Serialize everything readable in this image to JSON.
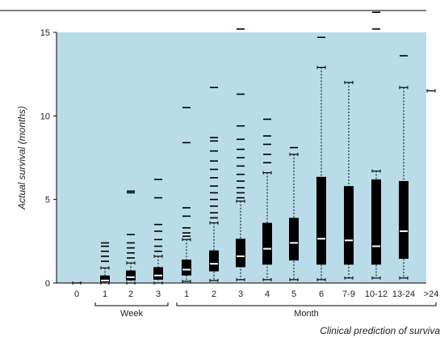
{
  "chart_data": {
    "type": "boxplot",
    "title": "",
    "ylabel": "Actual survival (months)",
    "xlabel": "Clinical prediction of surviva",
    "ylim": [
      0,
      15
    ],
    "yticks": [
      0,
      5,
      10,
      15
    ],
    "grid": false,
    "colors": {
      "panel": "#b9dce8",
      "box": "#000000",
      "median": "#ffffff",
      "outlier": "#000000"
    },
    "groups": [
      {
        "label": "Week",
        "categories": [
          "1",
          "2",
          "3"
        ]
      },
      {
        "label": "Month",
        "categories": [
          "1",
          "2",
          "3",
          "4",
          "5",
          "6",
          "7-9",
          "10-12",
          "13-24",
          ">24"
        ]
      }
    ],
    "categories": [
      "0",
      "1",
      "2",
      "3",
      "1",
      "2",
      "3",
      "4",
      "5",
      "6",
      "7-9",
      "10-12",
      "13-24",
      ">24"
    ],
    "boxes": [
      {
        "category": "0",
        "whisker_low": 0.0,
        "q1": 0.0,
        "median": 0.0,
        "q3": 0.0,
        "whisker_high": 0.0,
        "outliers": []
      },
      {
        "category": "1",
        "whisker_low": 0.0,
        "q1": 0.05,
        "median": 0.15,
        "q3": 0.45,
        "whisker_high": 0.9,
        "outliers": [
          1.3,
          1.6,
          1.9,
          2.2,
          2.4
        ]
      },
      {
        "category": "2",
        "whisker_low": 0.0,
        "q1": 0.15,
        "median": 0.35,
        "q3": 0.75,
        "whisker_high": 1.2,
        "outliers": [
          1.5,
          1.8,
          2.1,
          2.4,
          2.9,
          5.4,
          5.5
        ]
      },
      {
        "category": "3",
        "whisker_low": 0.0,
        "q1": 0.2,
        "median": 0.45,
        "q3": 0.95,
        "whisker_high": 1.6,
        "outliers": [
          1.9,
          2.2,
          2.6,
          3.1,
          3.5,
          5.1,
          6.2
        ]
      },
      {
        "category": "1",
        "whisker_low": 0.1,
        "q1": 0.45,
        "median": 0.8,
        "q3": 1.4,
        "whisker_high": 2.6,
        "outliers": [
          2.8,
          3.0,
          3.3,
          4.0,
          4.5,
          8.4,
          10.5
        ]
      },
      {
        "category": "2",
        "whisker_low": 0.15,
        "q1": 0.7,
        "median": 1.15,
        "q3": 1.95,
        "whisker_high": 3.6,
        "outliers": [
          3.9,
          4.2,
          4.6,
          5.0,
          5.4,
          5.8,
          6.3,
          6.8,
          7.3,
          7.9,
          8.5,
          8.7,
          11.7
        ]
      },
      {
        "category": "3",
        "whisker_low": 0.2,
        "q1": 0.95,
        "median": 1.6,
        "q3": 2.65,
        "whisker_high": 4.9,
        "outliers": [
          5.1,
          5.4,
          5.7,
          6.1,
          6.5,
          7.0,
          7.5,
          8.0,
          8.6,
          9.4,
          11.3,
          15.2
        ]
      },
      {
        "category": "4",
        "whisker_low": 0.2,
        "q1": 1.1,
        "median": 2.05,
        "q3": 3.6,
        "whisker_high": 6.6,
        "outliers": [
          7.2,
          7.7,
          8.3,
          8.8,
          9.8
        ]
      },
      {
        "category": "5",
        "whisker_low": 0.2,
        "q1": 1.35,
        "median": 2.4,
        "q3": 3.9,
        "whisker_high": 7.7,
        "outliers": [
          8.1
        ]
      },
      {
        "category": "6",
        "whisker_low": 0.2,
        "q1": 1.1,
        "median": 2.65,
        "q3": 6.35,
        "whisker_high": 12.9,
        "outliers": [
          14.7
        ]
      },
      {
        "category": "7-9",
        "whisker_low": 0.3,
        "q1": 1.1,
        "median": 2.55,
        "q3": 5.8,
        "whisker_high": 12.0,
        "outliers": []
      },
      {
        "category": "10-12",
        "whisker_low": 0.3,
        "q1": 1.1,
        "median": 2.2,
        "q3": 6.2,
        "whisker_high": 6.7,
        "outliers": [
          15.2,
          16.2
        ]
      },
      {
        "category": "13-24",
        "whisker_low": 0.3,
        "q1": 1.45,
        "median": 3.1,
        "q3": 6.1,
        "whisker_high": 11.7,
        "outliers": [
          13.6
        ]
      },
      {
        "category": ">24",
        "whisker_low": 11.5,
        "q1": 11.5,
        "median": 11.5,
        "q3": 11.5,
        "whisker_high": 11.5,
        "outliers": []
      }
    ]
  }
}
